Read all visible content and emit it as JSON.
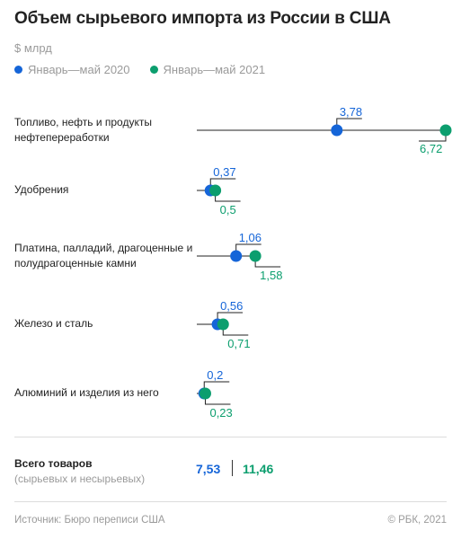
{
  "header": {
    "title": "Объем сырьевого импорта из России в США",
    "unit": "$ млрд"
  },
  "legend": [
    {
      "label": "Январь—май 2020",
      "color": "#1565d8"
    },
    {
      "label": "Январь—май 2021",
      "color": "#0c9e6e"
    }
  ],
  "chart_data": {
    "type": "dot",
    "categories": [
      "Топливо, нефть и продукты нефтепереработки",
      "Удобрения",
      "Платина, палладий, драгоценные и полудрагоценные камни",
      "Железо и сталь",
      "Алюминий и изделия из него"
    ],
    "series": [
      {
        "name": "Январь—май 2020",
        "color": "#1565d8",
        "values": [
          3.78,
          0.37,
          1.06,
          0.56,
          0.2
        ],
        "labels": [
          "3,78",
          "0,37",
          "1,06",
          "0,56",
          "0,2"
        ]
      },
      {
        "name": "Январь—май 2021",
        "color": "#0c9e6e",
        "values": [
          6.72,
          0.5,
          1.58,
          0.71,
          0.23
        ],
        "labels": [
          "6,72",
          "0,5",
          "1,58",
          "0,71",
          "0,23"
        ]
      }
    ],
    "xlim": [
      0,
      6.72
    ]
  },
  "totals": {
    "label": "Всего товаров",
    "sublabel": "(сырьевых и несырьевых)",
    "value_2020": "7,53",
    "value_2021": "11,46"
  },
  "footer": {
    "source": "Источник: Бюро переписи США",
    "copyright": "© РБК, 2021"
  }
}
